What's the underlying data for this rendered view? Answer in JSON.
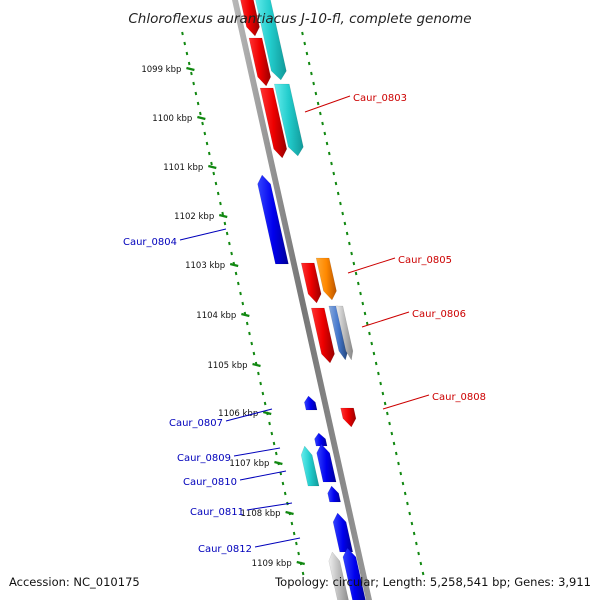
{
  "title": "Chloroflexus aurantiacus J-10-fl, complete genome",
  "footer": {
    "accession": "Accession: NC_010175",
    "summary": "Topology: circular; Length: 5,258,541 bp; Genes: 3,911"
  },
  "colors": {
    "forward_label": "#cc0000",
    "reverse_label": "#0000bb",
    "tick": "#118811",
    "backbone": "#888888"
  },
  "ticks": [
    "1099 kbp",
    "1100 kbp",
    "1101 kbp",
    "1102 kbp",
    "1103 kbp",
    "1104 kbp",
    "1105 kbp",
    "1106 kbp",
    "1107 kbp",
    "1108 kbp",
    "1109 kbp"
  ],
  "genes_forward": [
    {
      "label": "Caur_0803",
      "color": "#dd0000"
    },
    {
      "label": "Caur_0805",
      "color": "#ff8800"
    },
    {
      "label": "Caur_0806",
      "color": "#4477cc"
    },
    {
      "label": "Caur_0808",
      "color": "#dd0000"
    }
  ],
  "genes_reverse": [
    {
      "label": "Caur_0804",
      "color": "#0000dd"
    },
    {
      "label": "Caur_0807",
      "color": "#0000dd"
    },
    {
      "label": "Caur_0809",
      "color": "#0000dd"
    },
    {
      "label": "Caur_0810",
      "color": "#00cccc"
    },
    {
      "label": "Caur_0811",
      "color": "#0000dd"
    },
    {
      "label": "Caur_0812",
      "color": "#0000dd"
    }
  ]
}
